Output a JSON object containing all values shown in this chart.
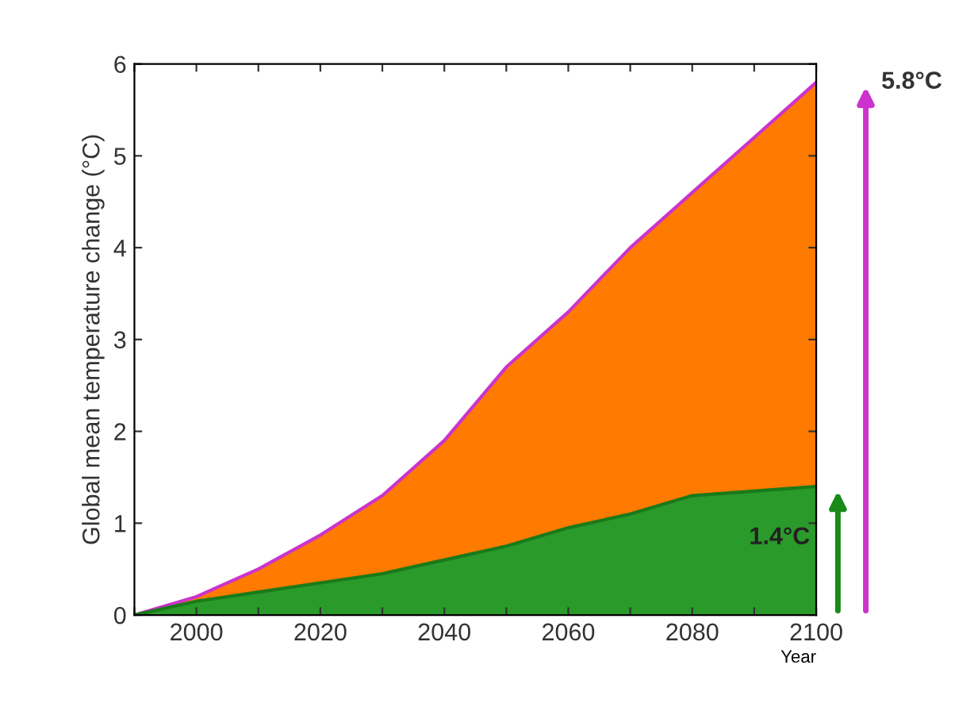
{
  "chart_data": {
    "type": "area",
    "ylabel": "Global mean temperature change (°C)",
    "xlabel": "Year",
    "x": [
      1990,
      2000,
      2010,
      2020,
      2030,
      2040,
      2050,
      2060,
      2070,
      2080,
      2090,
      2100
    ],
    "series": [
      {
        "color": "#ff7a00",
        "values": [
          0,
          0.2,
          0.5,
          0.87,
          1.3,
          1.9,
          2.7,
          3.3,
          4.0,
          4.6,
          5.2,
          5.8
        ]
      },
      {
        "color": "#2a9a2a",
        "values": [
          0,
          0.15,
          0.25,
          0.35,
          0.45,
          0.6,
          0.75,
          0.95,
          1.1,
          1.3,
          1.35,
          1.4
        ]
      }
    ],
    "annotations": [
      {
        "text": "5.8°C",
        "x": 2100,
        "y": 5.8
      },
      {
        "text": "1.4°C",
        "x": 2100,
        "y": 1.4
      }
    ],
    "xlim": [
      1990,
      2100
    ],
    "xticks": [
      {
        "value": 1990,
        "label": null
      },
      2000,
      {
        "value": 2010,
        "label": null
      },
      2020,
      {
        "value": 2030,
        "label": null
      },
      2040,
      {
        "value": 2050,
        "label": null
      },
      2060,
      {
        "value": 2070,
        "label": null
      },
      2080,
      {
        "value": 2090,
        "label": null
      },
      2100
    ],
    "ylim": [
      0,
      6
    ],
    "yticks": [
      0,
      1,
      2,
      3,
      4,
      5,
      6
    ],
    "grid": false,
    "legend": false
  }
}
